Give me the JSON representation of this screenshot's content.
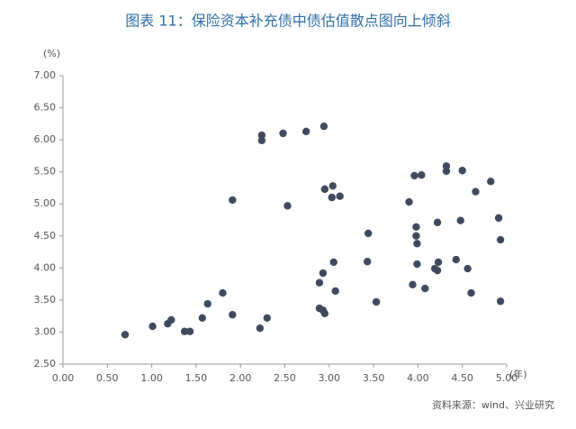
{
  "chart_data": {
    "type": "scatter",
    "title": "图表 11：保险资本补充债中债估值散点图向上倾斜",
    "y_label": "(%)",
    "x_label": "(年)",
    "source": "资料来源：wind、兴业研究",
    "color": "#3f4a5e",
    "x": [
      0.7,
      1.01,
      1.18,
      1.22,
      1.37,
      1.43,
      1.57,
      1.63,
      1.8,
      1.91,
      1.91,
      2.22,
      2.24,
      2.24,
      2.3,
      2.48,
      2.53,
      2.74,
      2.89,
      2.89,
      2.94,
      2.93,
      2.93,
      2.95,
      2.95,
      3.04,
      3.03,
      3.05,
      3.07,
      3.12,
      3.44,
      3.43,
      3.53,
      3.9,
      3.94,
      3.96,
      3.98,
      3.98,
      3.99,
      3.99,
      4.04,
      4.08,
      4.19,
      4.22,
      4.23,
      4.22,
      4.32,
      4.32,
      4.43,
      4.48,
      4.5,
      4.56,
      4.6,
      4.65,
      4.82,
      4.91,
      4.93,
      4.93
    ],
    "values": [
      2.96,
      3.09,
      3.13,
      3.19,
      3.01,
      3.01,
      3.22,
      3.44,
      3.61,
      3.27,
      5.06,
      3.06,
      6.07,
      5.99,
      3.22,
      6.1,
      4.97,
      6.13,
      3.77,
      3.37,
      6.21,
      3.92,
      3.34,
      3.29,
      5.23,
      5.28,
      5.1,
      4.09,
      3.64,
      5.12,
      4.54,
      4.1,
      3.47,
      5.03,
      3.74,
      5.44,
      4.64,
      4.5,
      4.38,
      4.06,
      5.45,
      3.68,
      3.99,
      4.71,
      4.09,
      3.96,
      5.59,
      5.51,
      4.13,
      4.74,
      5.52,
      3.99,
      3.61,
      5.19,
      5.35,
      4.78,
      4.44,
      3.48
    ],
    "xlim": [
      0,
      5
    ],
    "ylim": [
      2.5,
      7
    ],
    "xticks": [
      {
        "value": 0,
        "label": "0.00"
      },
      {
        "value": 0.5,
        "label": "0.50"
      },
      {
        "value": 1,
        "label": "1.00"
      },
      {
        "value": 1.5,
        "label": "1.50"
      },
      {
        "value": 2,
        "label": "2.00"
      },
      {
        "value": 2.5,
        "label": "2.50"
      },
      {
        "value": 3,
        "label": "3.00"
      },
      {
        "value": 3.5,
        "label": "3.50"
      },
      {
        "value": 4,
        "label": "4.00"
      },
      {
        "value": 4.5,
        "label": "4.50"
      },
      {
        "value": 5,
        "label": "5.00"
      }
    ],
    "yticks": [
      {
        "value": 2.5,
        "label": "2.50"
      },
      {
        "value": 3,
        "label": "3.00"
      },
      {
        "value": 3.5,
        "label": "3.50"
      },
      {
        "value": 4,
        "label": "4.00"
      },
      {
        "value": 4.5,
        "label": "4.50"
      },
      {
        "value": 5,
        "label": "5.00"
      },
      {
        "value": 5.5,
        "label": "5.50"
      },
      {
        "value": 6,
        "label": "6.00"
      },
      {
        "value": 6.5,
        "label": "6.50"
      },
      {
        "value": 7,
        "label": "7.00"
      }
    ]
  }
}
